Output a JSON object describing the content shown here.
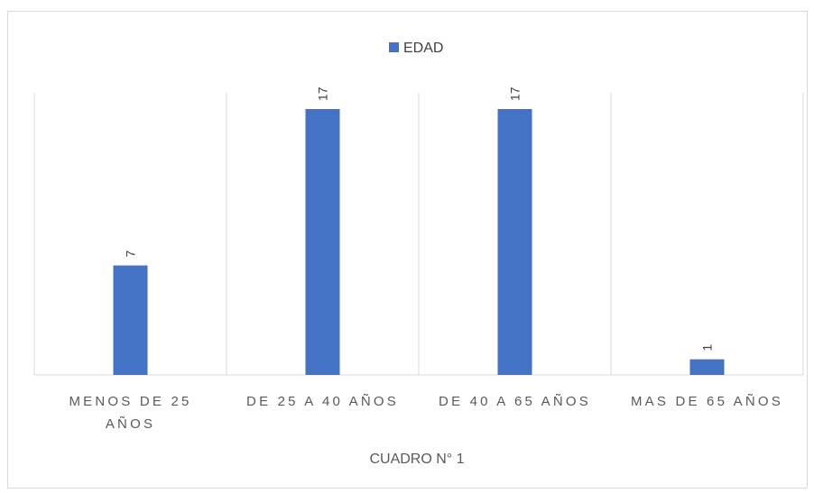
{
  "chart_data": {
    "type": "bar",
    "categories": [
      [
        "MENOS DE 25",
        "AÑOS"
      ],
      [
        "DE 25 A 40 AÑOS"
      ],
      [
        "DE 40 A 65 AÑOS"
      ],
      [
        "MAS DE 65 AÑOS"
      ]
    ],
    "series": [
      {
        "name": "EDAD",
        "values": [
          7,
          17,
          17,
          1
        ],
        "color": "#4472c4"
      }
    ],
    "xlabel": "CUADRO N° 1",
    "ylabel": "",
    "ylim": [
      0,
      17
    ],
    "legend_position": "top",
    "grid": "vertical-category-separators",
    "data_labels": "rotated"
  }
}
